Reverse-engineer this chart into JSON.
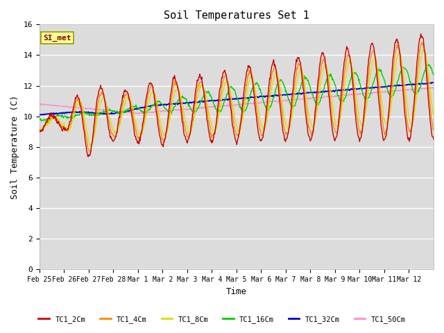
{
  "title": "Soil Temperatures Set 1",
  "xlabel": "Time",
  "ylabel": "Soil Temperature (C)",
  "ylim": [
    0,
    16
  ],
  "fig_bg_color": "#ffffff",
  "plot_bg_color": "#dcdcdc",
  "legend_label": "SI_met",
  "legend_box_facecolor": "#ffff99",
  "legend_box_edgecolor": "#999900",
  "legend_text_color": "#880000",
  "colors": {
    "TC1_2Cm": "#cc0000",
    "TC1_4Cm": "#ff8800",
    "TC1_8Cm": "#dddd00",
    "TC1_16Cm": "#00cc00",
    "TC1_32Cm": "#0000cc",
    "TC1_50Cm": "#ff88cc"
  },
  "series_names": [
    "TC1_2Cm",
    "TC1_4Cm",
    "TC1_8Cm",
    "TC1_16Cm",
    "TC1_32Cm",
    "TC1_50Cm"
  ],
  "n_days": 16,
  "points_per_day": 48,
  "yticks": [
    0,
    2,
    4,
    6,
    8,
    10,
    12,
    14,
    16
  ],
  "xtick_labels": [
    "Feb 25",
    "Feb 26",
    "Feb 27",
    "Feb 28",
    "Mar 1",
    "Mar 2",
    "Mar 3",
    "Mar 4",
    "Mar 5",
    "Mar 6",
    "Mar 7",
    "Mar 8",
    "Mar 9",
    "Mar 10",
    "Mar 11",
    "Mar 12"
  ],
  "linewidth": 1.0
}
